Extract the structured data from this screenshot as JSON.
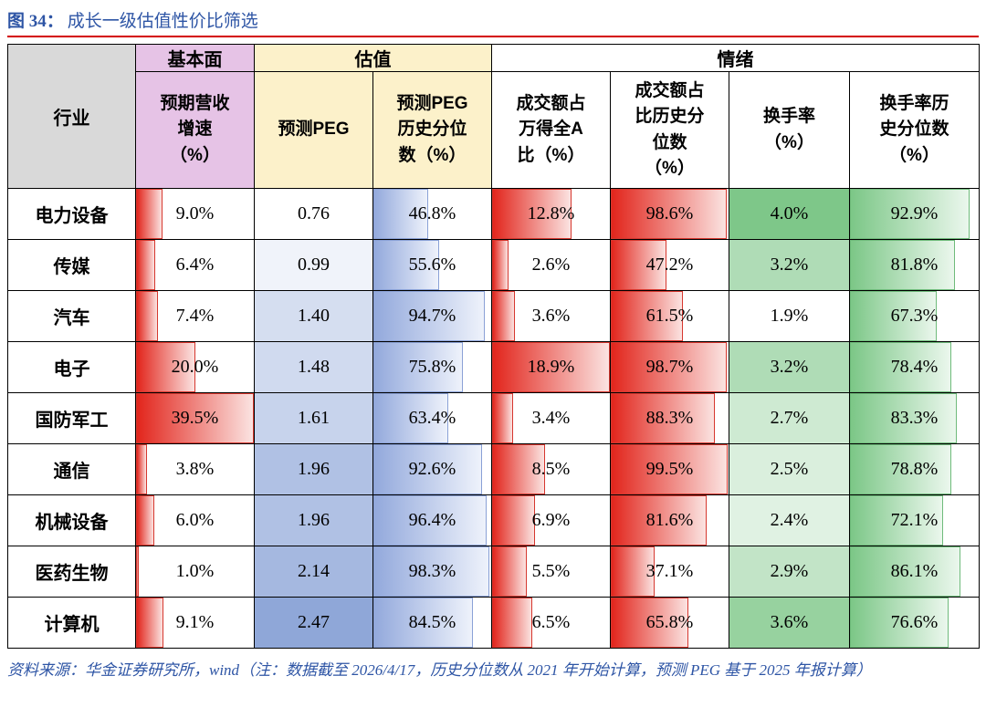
{
  "title": {
    "figure_label": "图 34：",
    "figure_title": "成长一级估值性价比筛选"
  },
  "footer": {
    "source_text": "资料来源：华金证券研究所，wind（注：数据截至 2026/4/17，历史分位数从 2021 年开始计算，预测 PEG 基于 2025 年报计算）"
  },
  "colors": {
    "title_blue": "#2e55a5",
    "rule_red": "#d40000",
    "header_pink": "#e6c3e6",
    "header_yellow": "#fcf1ca",
    "header_gray": "#d9d9d9",
    "bar_red": "#e2251c",
    "bar_blue": "#93a9dc",
    "bar_green": "#7cc787",
    "scale_blue": "#8fa7d8",
    "scale_green": "#7ec789"
  },
  "header_display": {
    "industry": "行业",
    "fundamentals": "基本面",
    "valuation": "估值",
    "sentiment": "情绪",
    "cols": [
      "预期营收\n增速\n（%）",
      "预测PEG",
      "预测PEG\n历史分位\n数（%）",
      "成交额占\n万得全A\n比（%）",
      "成交额占\n比历史分\n位数\n（%）",
      "换手率\n（%）",
      "换手率历\n史分位数\n（%）"
    ]
  },
  "chart_data": {
    "type": "table",
    "title": "成长一级估值性价比筛选",
    "group_headers": [
      {
        "label": "基本面",
        "span": 1
      },
      {
        "label": "估值",
        "span": 2
      },
      {
        "label": "情绪",
        "span": 4
      }
    ],
    "columns": [
      "行业",
      "预期营收增速（%）",
      "预测PEG",
      "预测PEG历史分位数（%）",
      "成交额占万得全A比（%）",
      "成交额占比历史分位数（%）",
      "换手率（%）",
      "换手率历史分位数（%）"
    ],
    "column_formats": [
      {
        "key": "revenue_growth",
        "fill": "bar",
        "color": "red",
        "max": 39.5
      },
      {
        "key": "peg",
        "fill": "scale",
        "color": "blue",
        "min": 0.76,
        "max": 2.47
      },
      {
        "key": "peg_percentile",
        "fill": "bar",
        "color": "blue",
        "max": 100
      },
      {
        "key": "turnover_share",
        "fill": "bar",
        "color": "red",
        "max": 18.9
      },
      {
        "key": "turnover_share_percentile",
        "fill": "bar",
        "color": "red",
        "max": 100
      },
      {
        "key": "turnover_rate",
        "fill": "scale",
        "color": "green",
        "min": 1.9,
        "max": 4.0
      },
      {
        "key": "turnover_rate_percentile",
        "fill": "bar",
        "color": "green",
        "max": 100
      }
    ],
    "rows": [
      {
        "industry": "电力设备",
        "values": [
          9.0,
          0.76,
          46.8,
          12.8,
          98.6,
          4.0,
          92.9
        ],
        "display": [
          "9.0%",
          "0.76",
          "46.8%",
          "12.8%",
          "98.6%",
          "4.0%",
          "92.9%"
        ]
      },
      {
        "industry": "传媒",
        "values": [
          6.4,
          0.99,
          55.6,
          2.6,
          47.2,
          3.2,
          81.8
        ],
        "display": [
          "6.4%",
          "0.99",
          "55.6%",
          "2.6%",
          "47.2%",
          "3.2%",
          "81.8%"
        ]
      },
      {
        "industry": "汽车",
        "values": [
          7.4,
          1.4,
          94.7,
          3.6,
          61.5,
          1.9,
          67.3
        ],
        "display": [
          "7.4%",
          "1.40",
          "94.7%",
          "3.6%",
          "61.5%",
          "1.9%",
          "67.3%"
        ]
      },
      {
        "industry": "电子",
        "values": [
          20.0,
          1.48,
          75.8,
          18.9,
          98.7,
          3.2,
          78.4
        ],
        "display": [
          "20.0%",
          "1.48",
          "75.8%",
          "18.9%",
          "98.7%",
          "3.2%",
          "78.4%"
        ]
      },
      {
        "industry": "国防军工",
        "values": [
          39.5,
          1.61,
          63.4,
          3.4,
          88.3,
          2.7,
          83.3
        ],
        "display": [
          "39.5%",
          "1.61",
          "63.4%",
          "3.4%",
          "88.3%",
          "2.7%",
          "83.3%"
        ]
      },
      {
        "industry": "通信",
        "values": [
          3.8,
          1.96,
          92.6,
          8.5,
          99.5,
          2.5,
          78.8
        ],
        "display": [
          "3.8%",
          "1.96",
          "92.6%",
          "8.5%",
          "99.5%",
          "2.5%",
          "78.8%"
        ]
      },
      {
        "industry": "机械设备",
        "values": [
          6.0,
          1.96,
          96.4,
          6.9,
          81.6,
          2.4,
          72.1
        ],
        "display": [
          "6.0%",
          "1.96",
          "96.4%",
          "6.9%",
          "81.6%",
          "2.4%",
          "72.1%"
        ]
      },
      {
        "industry": "医药生物",
        "values": [
          1.0,
          2.14,
          98.3,
          5.5,
          37.1,
          2.9,
          86.1
        ],
        "display": [
          "1.0%",
          "2.14",
          "98.3%",
          "5.5%",
          "37.1%",
          "2.9%",
          "86.1%"
        ]
      },
      {
        "industry": "计算机",
        "values": [
          9.1,
          2.47,
          84.5,
          6.5,
          65.8,
          3.6,
          76.6
        ],
        "display": [
          "9.1%",
          "2.47",
          "84.5%",
          "6.5%",
          "65.8%",
          "3.6%",
          "76.6%"
        ]
      }
    ]
  }
}
